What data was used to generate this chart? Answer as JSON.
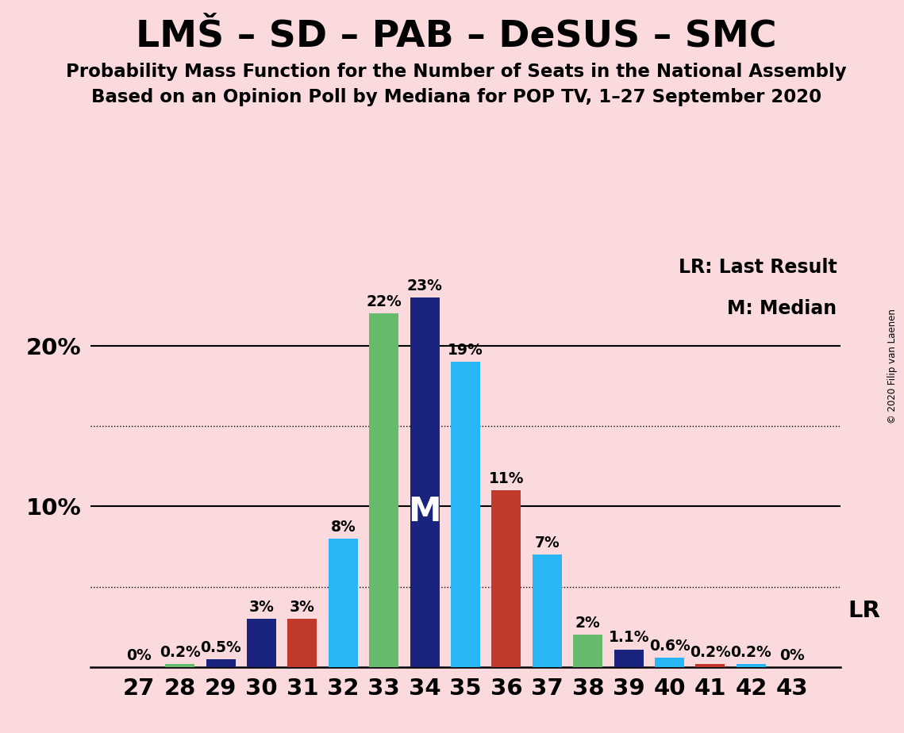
{
  "title": "LMŠ – SD – PAB – DeSUS – SMC",
  "subtitle1": "Probability Mass Function for the Number of Seats in the National Assembly",
  "subtitle2": "Based on an Opinion Poll by Mediana for POP TV, 1–27 September 2020",
  "copyright": "© 2020 Filip van Laenen",
  "background_color": "#fadadd",
  "seats": [
    27,
    28,
    29,
    30,
    31,
    32,
    33,
    34,
    35,
    36,
    37,
    38,
    39,
    40,
    41,
    42,
    43
  ],
  "values": [
    0.0,
    0.2,
    0.5,
    3.0,
    3.0,
    8.0,
    22.0,
    23.0,
    19.0,
    11.0,
    7.0,
    2.0,
    1.1,
    0.6,
    0.2,
    0.2,
    0.0
  ],
  "colors": [
    "#66bb6a",
    "#66bb6a",
    "#1a237e",
    "#1a237e",
    "#c0392b",
    "#29b6f6",
    "#66bb6a",
    "#1a237e",
    "#29b6f6",
    "#c0392b",
    "#29b6f6",
    "#66bb6a",
    "#1a237e",
    "#29b6f6",
    "#c0392b",
    "#29b6f6",
    "#66bb6a"
  ],
  "labels": [
    "0%",
    "0.2%",
    "0.5%",
    "3%",
    "3%",
    "8%",
    "22%",
    "23%",
    "19%",
    "11%",
    "7%",
    "2%",
    "1.1%",
    "0.6%",
    "0.2%",
    "0.2%",
    "0%"
  ],
  "median_seat": 34,
  "ylim": [
    0,
    26
  ],
  "solid_lines": [
    10,
    20
  ],
  "dotted_lines": [
    5,
    15
  ],
  "legend_lr": "LR: Last Result",
  "legend_m": "M: Median",
  "lr_label": "LR",
  "title_fontsize": 34,
  "subtitle_fontsize": 16.5,
  "axis_fontsize": 21,
  "bar_label_fontsize": 13.5,
  "legend_fontsize": 17,
  "m_fontsize": 30
}
